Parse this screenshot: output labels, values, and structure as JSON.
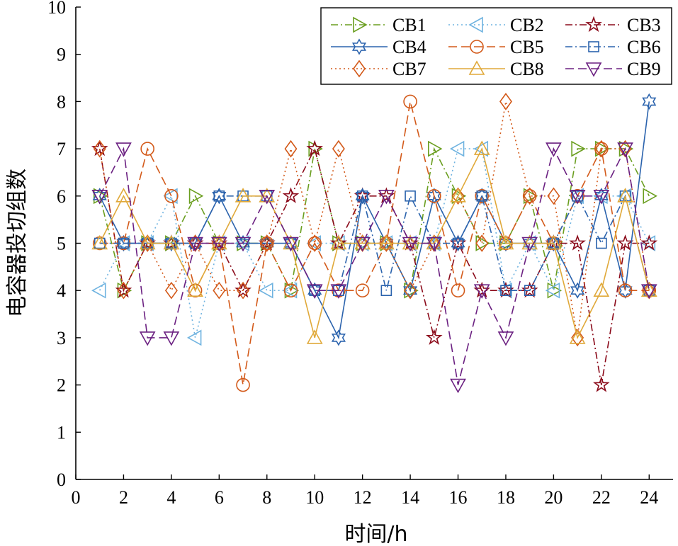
{
  "chart_data": {
    "type": "line",
    "xlabel": "时间/h",
    "ylabel": "电容器投切组数",
    "xlim": [
      0,
      25
    ],
    "ylim": [
      0,
      10
    ],
    "xticks": [
      0,
      2,
      4,
      6,
      8,
      10,
      12,
      14,
      16,
      18,
      20,
      22,
      24
    ],
    "yticks": [
      0,
      1,
      2,
      3,
      4,
      5,
      6,
      7,
      8,
      9,
      10
    ],
    "x": [
      1,
      2,
      3,
      4,
      5,
      6,
      7,
      8,
      9,
      10,
      11,
      12,
      13,
      14,
      15,
      16,
      17,
      18,
      19,
      20,
      21,
      22,
      23,
      24
    ],
    "grid": false,
    "legend_position": "top-right",
    "series": [
      {
        "name": "CB1",
        "color": "#6a9e1f",
        "dash": "dashdot",
        "marker": "triangle-right",
        "values": [
          6,
          4,
          5,
          5,
          6,
          5,
          5,
          5,
          4,
          7,
          5,
          5,
          5,
          4,
          7,
          6,
          5,
          5,
          6,
          4,
          7,
          7,
          7,
          6
        ]
      },
      {
        "name": "CB2",
        "color": "#6fb3e0",
        "dash": "dotted",
        "marker": "triangle-left",
        "values": [
          4,
          5,
          5,
          6,
          3,
          5,
          5,
          4,
          4,
          5,
          5,
          5,
          5,
          5,
          5,
          7,
          7,
          4,
          5,
          4,
          6,
          6,
          6,
          5
        ]
      },
      {
        "name": "CB3",
        "color": "#8b0a1a",
        "dash": "dashdot",
        "marker": "star",
        "values": [
          7,
          4,
          5,
          5,
          5,
          5,
          4,
          5,
          6,
          7,
          5,
          6,
          6,
          5,
          3,
          5,
          4,
          4,
          4,
          5,
          5,
          2,
          5,
          5
        ]
      },
      {
        "name": "CB4",
        "color": "#2b63ad",
        "dash": "solid",
        "marker": "hexagram",
        "values": [
          6,
          5,
          5,
          5,
          5,
          6,
          5,
          5,
          5,
          4,
          3,
          6,
          5,
          4,
          6,
          5,
          6,
          5,
          5,
          5,
          4,
          6,
          4,
          8
        ]
      },
      {
        "name": "CB5",
        "color": "#d35a1a",
        "dash": "dashed",
        "marker": "circle",
        "values": [
          5,
          5,
          7,
          6,
          4,
          5,
          2,
          5,
          4,
          5,
          4,
          4,
          5,
          8,
          6,
          4,
          6,
          5,
          6,
          5,
          6,
          7,
          4,
          4
        ]
      },
      {
        "name": "CB6",
        "color": "#2b63ad",
        "dash": "dashdot",
        "marker": "square",
        "values": [
          5,
          5,
          5,
          5,
          5,
          6,
          6,
          6,
          5,
          4,
          4,
          6,
          4,
          6,
          5,
          5,
          6,
          4,
          4,
          5,
          6,
          5,
          6,
          4
        ]
      },
      {
        "name": "CB7",
        "color": "#d35a1a",
        "dash": "dotted",
        "marker": "diamond",
        "values": [
          7,
          4,
          5,
          4,
          5,
          4,
          4,
          5,
          7,
          5,
          7,
          5,
          5,
          4,
          5,
          6,
          5,
          8,
          6,
          6,
          3,
          7,
          7,
          4
        ]
      },
      {
        "name": "CB8",
        "color": "#e0a93a",
        "dash": "solid",
        "marker": "triangle-up",
        "values": [
          5,
          6,
          5,
          5,
          4,
          5,
          6,
          6,
          5,
          3,
          5,
          5,
          5,
          5,
          5,
          6,
          7,
          5,
          5,
          5,
          3,
          4,
          6,
          4
        ]
      },
      {
        "name": "CB9",
        "color": "#6b2081",
        "dash": "dashed",
        "marker": "triangle-down",
        "values": [
          6,
          7,
          3,
          3,
          5,
          5,
          5,
          6,
          5,
          4,
          4,
          5,
          6,
          5,
          5,
          2,
          4,
          3,
          5,
          7,
          6,
          6,
          7,
          4
        ]
      }
    ]
  }
}
